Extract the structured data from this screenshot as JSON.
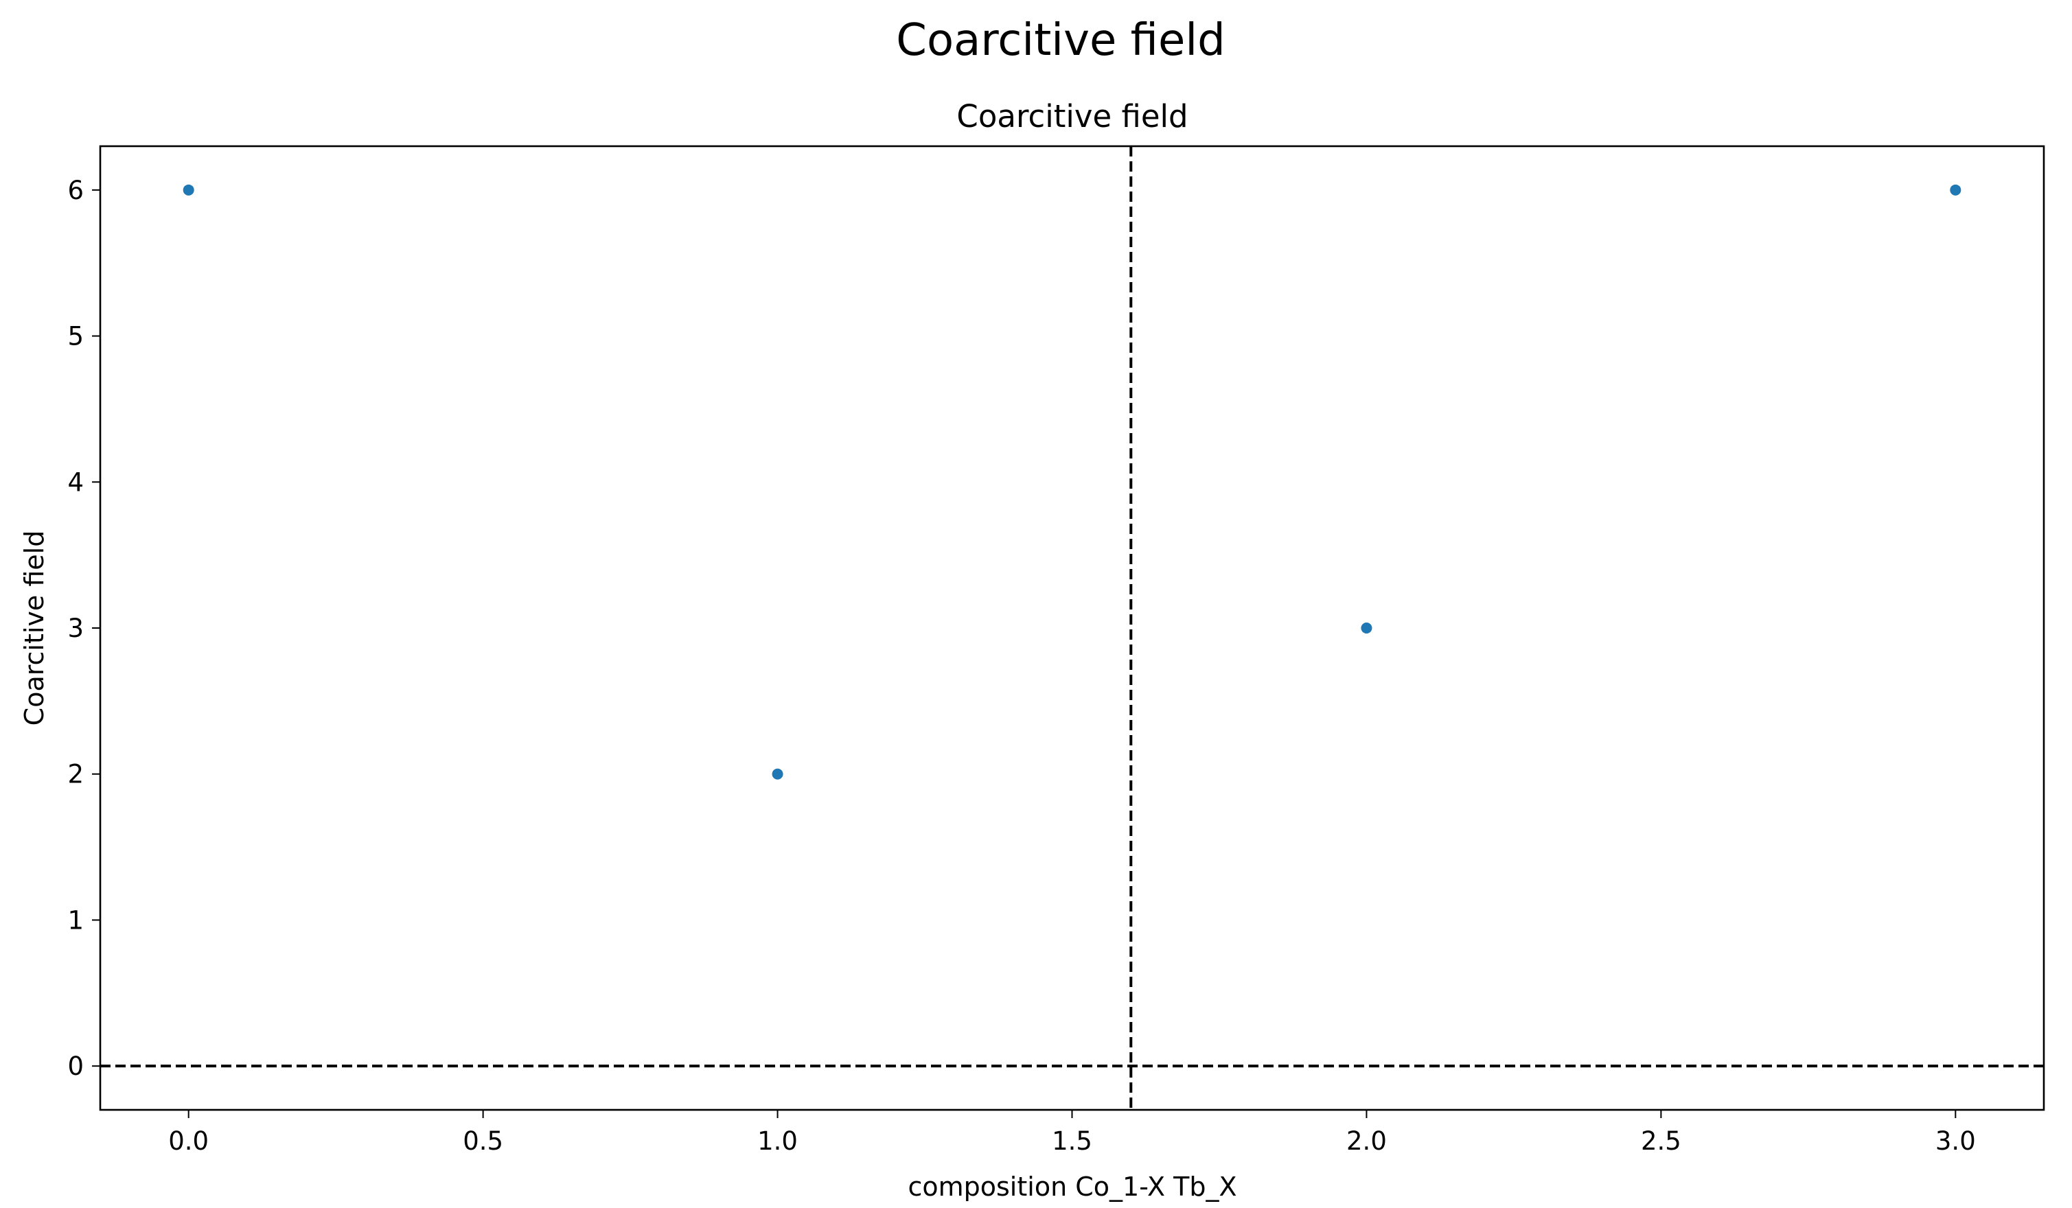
{
  "chart_data": {
    "type": "scatter",
    "suptitle": "Coarcitive field",
    "title": "Coarcitive field",
    "xlabel": "composition Co_1-X Tb_X",
    "ylabel": "Coarcitive field",
    "xlim": [
      -0.15,
      3.15
    ],
    "ylim": [
      -0.3,
      6.3
    ],
    "xticks": [
      0.0,
      0.5,
      1.0,
      1.5,
      2.0,
      2.5,
      3.0
    ],
    "xtick_labels": [
      "0.0",
      "0.5",
      "1.0",
      "1.5",
      "2.0",
      "2.5",
      "3.0"
    ],
    "yticks": [
      0,
      1,
      2,
      3,
      4,
      5,
      6
    ],
    "ytick_labels": [
      "0",
      "1",
      "2",
      "3",
      "4",
      "5",
      "6"
    ],
    "grid": false,
    "series": [
      {
        "x": [
          0,
          1,
          2,
          3
        ],
        "y": [
          6,
          2,
          3,
          6
        ],
        "color": "#1f77b4",
        "marker": "dot"
      }
    ],
    "reference_lines": [
      {
        "orientation": "vertical",
        "value": 1.6,
        "style": "dashed",
        "color": "#000000"
      },
      {
        "orientation": "horizontal",
        "value": 0,
        "style": "dashed",
        "color": "#000000"
      }
    ]
  }
}
